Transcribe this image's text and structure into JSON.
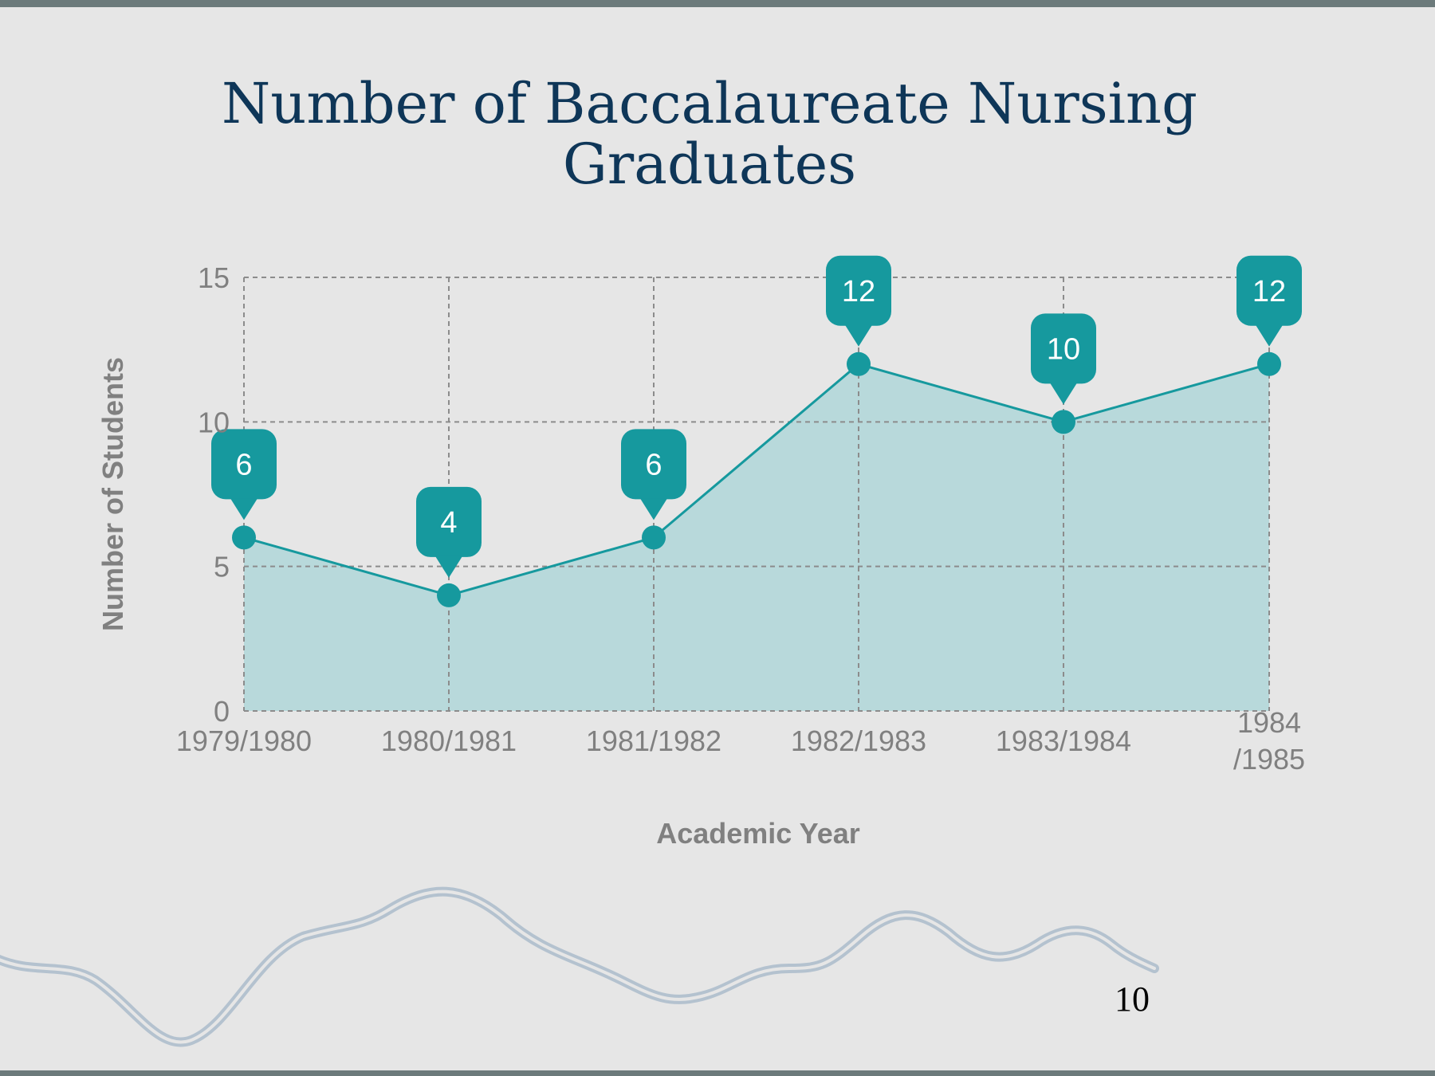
{
  "slide": {
    "title": "Number of Baccalaureate Nursing Graduates",
    "page_number": "10"
  },
  "colors": {
    "title": "#0e3658",
    "series": "#16999e",
    "area_fill": "#b8d9db",
    "grid": "#8c8c8c",
    "axis_text": "#808080",
    "background": "#e6e6e6",
    "wave": "#b4c2cf"
  },
  "chart_data": {
    "type": "area",
    "categories": [
      "1979/1980",
      "1980/1981",
      "1981/1982",
      "1982/1983",
      "1983/1984",
      "1984 /1985"
    ],
    "series": [
      {
        "values": [
          6,
          4,
          6,
          12,
          10,
          12
        ]
      }
    ],
    "data_labels": [
      "6",
      "4",
      "6",
      "12",
      "10",
      "12"
    ],
    "xlabel": "Academic Year",
    "ylabel": "Number of Students",
    "ylim": [
      0,
      15
    ],
    "yticks": [
      0,
      5,
      10,
      15
    ],
    "grid": true,
    "grid_style": "dashed",
    "legend": "none"
  }
}
